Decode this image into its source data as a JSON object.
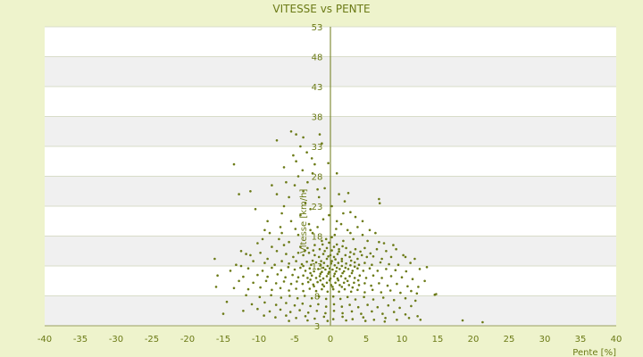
{
  "chart_data": {
    "type": "scatter",
    "title": "VITESSE vs PENTE",
    "xlabel": "Pente [%]",
    "ylabel": "Vitesse [km/h]",
    "xlim": [
      -40,
      40
    ],
    "ylim": [
      3,
      53
    ],
    "x_ticks": [
      "-40",
      "-35",
      "-30",
      "-25",
      "-20",
      "-15",
      "-10",
      "-5",
      "0",
      "5",
      "10",
      "15",
      "20",
      "25",
      "30",
      "35",
      "40"
    ],
    "y_ticks": [
      "3",
      "8",
      "13",
      "18",
      "23",
      "28",
      "33",
      "38",
      "43",
      "48",
      "53"
    ],
    "grid": true,
    "legend": "none",
    "colors": {
      "page_background": "#eef3cc",
      "band_light": "#ffffff",
      "band_dark": "#f0f0f0",
      "axis": "#6b7a16",
      "point": "#6b7a16",
      "text": "#6b7a16"
    },
    "points": [
      [
        -13.5,
        30
      ],
      [
        -12.8,
        25
      ],
      [
        -11.2,
        25.5
      ],
      [
        -7.5,
        34
      ],
      [
        -5.5,
        35.5
      ],
      [
        -4.8,
        35
      ],
      [
        -4.2,
        33
      ],
      [
        -3.8,
        34.5
      ],
      [
        -3.3,
        32
      ],
      [
        -5.2,
        31.5
      ],
      [
        -4.5,
        28
      ],
      [
        -6.2,
        27
      ],
      [
        -2.5,
        28.5
      ],
      [
        -1.5,
        35
      ],
      [
        -1.2,
        33.5
      ],
      [
        -2.2,
        30
      ],
      [
        -0.8,
        26
      ],
      [
        1.2,
        25
      ],
      [
        2.5,
        25.2
      ],
      [
        6.8,
        24.2
      ],
      [
        6.9,
        23.5
      ],
      [
        -6.5,
        23
      ],
      [
        -3.5,
        23.5
      ],
      [
        -2.8,
        22.5
      ],
      [
        0.2,
        23
      ],
      [
        2.8,
        22
      ],
      [
        -4.2,
        21.5
      ],
      [
        3.5,
        21.2
      ],
      [
        -5.5,
        20.5
      ],
      [
        -3,
        20
      ],
      [
        1.5,
        20
      ],
      [
        -1.8,
        19.5
      ],
      [
        0.8,
        19.2
      ],
      [
        -8.5,
        18.5
      ],
      [
        -4.5,
        18.2
      ],
      [
        -2.5,
        18.5
      ],
      [
        2.8,
        18.5
      ],
      [
        4.5,
        18.2
      ],
      [
        -9.5,
        17.5
      ],
      [
        -7.2,
        17.5
      ],
      [
        -5.8,
        17
      ],
      [
        -1.2,
        17.2
      ],
      [
        0.2,
        17.8
      ],
      [
        1.8,
        17.2
      ],
      [
        3.2,
        17.5
      ],
      [
        5.2,
        17.2
      ],
      [
        6.8,
        17
      ],
      [
        8.8,
        16.5
      ],
      [
        -10.2,
        16.8
      ],
      [
        -8.2,
        16.2
      ],
      [
        -6.5,
        16.5
      ],
      [
        -4.2,
        16.2
      ],
      [
        -3.2,
        16
      ],
      [
        -2.2,
        16.5
      ],
      [
        -1.5,
        15.8
      ],
      [
        -0.5,
        16
      ],
      [
        0.5,
        16.2
      ],
      [
        1.2,
        15.8
      ],
      [
        2.2,
        16
      ],
      [
        3.5,
        15.8
      ],
      [
        4.8,
        16
      ],
      [
        6.5,
        15.8
      ],
      [
        7.8,
        15.5
      ],
      [
        9.2,
        15.8
      ],
      [
        -16.2,
        14.2
      ],
      [
        -12.5,
        15.5
      ],
      [
        -11.2,
        14.8
      ],
      [
        -9.8,
        15.2
      ],
      [
        -8.8,
        14.2
      ],
      [
        -7.5,
        15.5
      ],
      [
        -6.2,
        15
      ],
      [
        -5.2,
        14.5
      ],
      [
        -4.5,
        15.2
      ],
      [
        -3.8,
        14.8
      ],
      [
        -3,
        15.2
      ],
      [
        -2.2,
        14.8
      ],
      [
        -1.6,
        14.5
      ],
      [
        -1,
        15
      ],
      [
        -0.5,
        14.2
      ],
      [
        0,
        14.8
      ],
      [
        0.5,
        14.5
      ],
      [
        1,
        15
      ],
      [
        1.6,
        14.2
      ],
      [
        2.1,
        14.8
      ],
      [
        2.7,
        14.5
      ],
      [
        3.3,
        15
      ],
      [
        3.8,
        14.2
      ],
      [
        4.4,
        14.8
      ],
      [
        5.1,
        14.5
      ],
      [
        6,
        14.6
      ],
      [
        7.2,
        14.2
      ],
      [
        8.5,
        14.5
      ],
      [
        10.2,
        14.8
      ],
      [
        -10.8,
        13.8
      ],
      [
        -9.2,
        13.5
      ],
      [
        -7.8,
        13.2
      ],
      [
        -6.8,
        13.8
      ],
      [
        -5.8,
        13.4
      ],
      [
        -4.8,
        13.8
      ],
      [
        -4,
        13.3
      ],
      [
        -3.3,
        13.7
      ],
      [
        -2.7,
        13.2
      ],
      [
        -2,
        13.6
      ],
      [
        -1.4,
        13.1
      ],
      [
        -0.9,
        13.5
      ],
      [
        -0.4,
        13
      ],
      [
        0.1,
        13.4
      ],
      [
        0.6,
        13.1
      ],
      [
        1.1,
        13.5
      ],
      [
        1.6,
        13
      ],
      [
        2.2,
        13.4
      ],
      [
        2.8,
        13.1
      ],
      [
        3.4,
        13.6
      ],
      [
        4,
        13.2
      ],
      [
        4.8,
        13.5
      ],
      [
        5.8,
        13.2
      ],
      [
        7,
        13.6
      ],
      [
        8.2,
        13.3
      ],
      [
        9.5,
        13.2
      ],
      [
        11.2,
        13.5
      ],
      [
        -13.2,
        13.2
      ],
      [
        -14,
        12.2
      ],
      [
        -11.5,
        12.6
      ],
      [
        -9.5,
        12.2
      ],
      [
        -8.2,
        12.7
      ],
      [
        -6.9,
        12.3
      ],
      [
        -5.9,
        12.8
      ],
      [
        -5,
        12.4
      ],
      [
        -4.2,
        12.7
      ],
      [
        -3.5,
        12.2
      ],
      [
        -2.9,
        12.6
      ],
      [
        -2.3,
        12.1
      ],
      [
        -1.7,
        12.5
      ],
      [
        -1.2,
        12
      ],
      [
        -0.7,
        12.4
      ],
      [
        -0.2,
        12
      ],
      [
        0.3,
        12.4
      ],
      [
        0.8,
        12.1
      ],
      [
        1.3,
        12.5
      ],
      [
        1.9,
        12.1
      ],
      [
        2.5,
        12.5
      ],
      [
        3.1,
        12.2
      ],
      [
        3.8,
        12.6
      ],
      [
        4.6,
        12.2
      ],
      [
        5.5,
        12.6
      ],
      [
        6.6,
        12.2
      ],
      [
        7.8,
        12.5
      ],
      [
        9.1,
        12.3
      ],
      [
        10.6,
        12.1
      ],
      [
        12.5,
        12.5
      ],
      [
        -15.8,
        11.4
      ],
      [
        -12.2,
        11.2
      ],
      [
        -10.2,
        11.5
      ],
      [
        -8.8,
        11.2
      ],
      [
        -7.4,
        11.6
      ],
      [
        -6.3,
        11.1
      ],
      [
        -5.3,
        11.5
      ],
      [
        -4.5,
        11.1
      ],
      [
        -3.8,
        11.4
      ],
      [
        -3.2,
        11
      ],
      [
        -2.6,
        11.4
      ],
      [
        -2,
        11
      ],
      [
        -1.5,
        11.3
      ],
      [
        -1,
        10.9
      ],
      [
        -0.5,
        11.3
      ],
      [
        0,
        10.9
      ],
      [
        0.5,
        11.3
      ],
      [
        1,
        10.9
      ],
      [
        1.5,
        11.3
      ],
      [
        2.1,
        10.9
      ],
      [
        2.7,
        11.3
      ],
      [
        3.4,
        11
      ],
      [
        4.1,
        11.4
      ],
      [
        5,
        11
      ],
      [
        6,
        11.4
      ],
      [
        7.2,
        11
      ],
      [
        8.5,
        11.3
      ],
      [
        10,
        11.1
      ],
      [
        11.5,
        10.8
      ],
      [
        13.2,
        10.5
      ],
      [
        14.8,
        8.3
      ],
      [
        -12.8,
        10.5
      ],
      [
        -10.8,
        10.2
      ],
      [
        -9,
        10.5
      ],
      [
        -7.6,
        10.1
      ],
      [
        -6.5,
        10.4
      ],
      [
        -5.5,
        10
      ],
      [
        -4.7,
        10.4
      ],
      [
        -3.9,
        10
      ],
      [
        -3.1,
        10.3
      ],
      [
        -2.4,
        9.9
      ],
      [
        -1.8,
        10.3
      ],
      [
        -1.1,
        9.9
      ],
      [
        -0.5,
        10.2
      ],
      [
        0.1,
        9.8
      ],
      [
        0.7,
        10.2
      ],
      [
        1.3,
        9.8
      ],
      [
        1.9,
        10.2
      ],
      [
        2.6,
        9.8
      ],
      [
        3.3,
        10.2
      ],
      [
        4,
        9.8
      ],
      [
        4.8,
        10.1
      ],
      [
        5.7,
        9.7
      ],
      [
        6.8,
        10.1
      ],
      [
        8,
        9.7
      ],
      [
        9.3,
        10
      ],
      [
        10.8,
        9.6
      ],
      [
        12.3,
        9.5
      ],
      [
        -16,
        9.5
      ],
      [
        -13.5,
        9.3
      ],
      [
        -11.5,
        9.1
      ],
      [
        -9.8,
        9.4
      ],
      [
        -8.2,
        9
      ],
      [
        -7,
        9.3
      ],
      [
        -5.8,
        8.9
      ],
      [
        -4.8,
        9.2
      ],
      [
        -3.8,
        8.8
      ],
      [
        -2.9,
        9.2
      ],
      [
        -2,
        8.8
      ],
      [
        -1.2,
        9.1
      ],
      [
        -0.4,
        8.7
      ],
      [
        0.4,
        9.1
      ],
      [
        1.2,
        8.7
      ],
      [
        2,
        9.1
      ],
      [
        2.9,
        8.7
      ],
      [
        3.8,
        9
      ],
      [
        4.8,
        8.6
      ],
      [
        5.9,
        9
      ],
      [
        7.1,
        8.6
      ],
      [
        8.4,
        8.9
      ],
      [
        9.8,
        8.5
      ],
      [
        11.3,
        8.8
      ],
      [
        12.1,
        8.4
      ],
      [
        14.6,
        8.2
      ],
      [
        -11.8,
        8.1
      ],
      [
        -9.9,
        7.8
      ],
      [
        -8.3,
        8.1
      ],
      [
        -6.9,
        7.7
      ],
      [
        -5.7,
        8
      ],
      [
        -4.6,
        7.6
      ],
      [
        -3.6,
        8
      ],
      [
        -2.6,
        7.6
      ],
      [
        -1.6,
        7.9
      ],
      [
        -0.6,
        7.5
      ],
      [
        0.4,
        7.9
      ],
      [
        1.4,
        7.5
      ],
      [
        2.4,
        7.8
      ],
      [
        3.5,
        7.4
      ],
      [
        4.7,
        7.8
      ],
      [
        6,
        7.4
      ],
      [
        7.4,
        7.7
      ],
      [
        8.9,
        7.3
      ],
      [
        10.5,
        7.6
      ],
      [
        11.9,
        7.2
      ],
      [
        -14.5,
        7
      ],
      [
        -11,
        6.6
      ],
      [
        -9.2,
        6.9
      ],
      [
        -7.6,
        6.5
      ],
      [
        -6.2,
        6.8
      ],
      [
        -5,
        6.4
      ],
      [
        -3.9,
        6.7
      ],
      [
        -2.8,
        6.3
      ],
      [
        -1.7,
        6.6
      ],
      [
        -0.6,
        6.2
      ],
      [
        0.5,
        6.6
      ],
      [
        1.6,
        6.2
      ],
      [
        2.7,
        6.5
      ],
      [
        3.9,
        6.1
      ],
      [
        5.2,
        6.5
      ],
      [
        6.6,
        6.1
      ],
      [
        8.1,
        6.4
      ],
      [
        9.7,
        6
      ],
      [
        11.3,
        6.3
      ],
      [
        -12.2,
        5.5
      ],
      [
        -10.2,
        5.8
      ],
      [
        -8.5,
        5.4
      ],
      [
        -7,
        5.7
      ],
      [
        -5.6,
        5.3
      ],
      [
        -4.3,
        5.6
      ],
      [
        -3.1,
        5.2
      ],
      [
        -1.9,
        5.5
      ],
      [
        -0.7,
        5.1
      ],
      [
        0.5,
        5.5
      ],
      [
        1.7,
        5.1
      ],
      [
        3,
        5.4
      ],
      [
        4.3,
        5
      ],
      [
        5.8,
        5.4
      ],
      [
        7.3,
        5
      ],
      [
        8.9,
        5.3
      ],
      [
        10.5,
        4.9
      ],
      [
        12.2,
        4.6
      ],
      [
        -15,
        5
      ],
      [
        -9.3,
        4.7
      ],
      [
        -7.7,
        4.4
      ],
      [
        -6.2,
        4.7
      ],
      [
        -4.8,
        4.3
      ],
      [
        -3.5,
        4.6
      ],
      [
        -2.2,
        4.2
      ],
      [
        -0.9,
        4.5
      ],
      [
        0.4,
        4.1
      ],
      [
        1.7,
        4.5
      ],
      [
        3.1,
        4.1
      ],
      [
        4.6,
        4.4
      ],
      [
        6.1,
        4
      ],
      [
        7.7,
        4.3
      ],
      [
        9.3,
        4
      ],
      [
        11,
        4.3
      ],
      [
        12.6,
        4
      ],
      [
        -5.8,
        3.8
      ],
      [
        -3.2,
        3.9
      ],
      [
        -0.4,
        3.8
      ],
      [
        2.2,
        3.9
      ],
      [
        4.9,
        3.8
      ],
      [
        7.6,
        3.7
      ],
      [
        18.5,
        3.9
      ],
      [
        21.3,
        3.6
      ],
      [
        -10.5,
        22.5
      ],
      [
        -8.8,
        20.5
      ],
      [
        -7,
        19.5
      ],
      [
        -0.2,
        21.5
      ],
      [
        1.8,
        21.8
      ],
      [
        4.5,
        20.5
      ],
      [
        5.5,
        19
      ],
      [
        -6.8,
        21.8
      ],
      [
        -3.8,
        25.5
      ],
      [
        -1.6,
        24.5
      ],
      [
        2,
        23.8
      ],
      [
        0.6,
        18.2
      ],
      [
        -0.6,
        17.5
      ],
      [
        -9.2,
        19
      ],
      [
        -11.8,
        15
      ],
      [
        3.8,
        19.5
      ],
      [
        6.3,
        18.5
      ],
      [
        7.5,
        16.8
      ],
      [
        -12.5,
        13
      ],
      [
        10.5,
        14.5
      ],
      [
        11.8,
        14.2
      ],
      [
        13.5,
        12.8
      ],
      [
        -6.5,
        29.5
      ],
      [
        -4.8,
        30.5
      ],
      [
        -3.2,
        27
      ],
      [
        -1.8,
        25.8
      ],
      [
        -5.8,
        24.5
      ],
      [
        -8.2,
        26.5
      ],
      [
        0.9,
        28.5
      ],
      [
        -0.3,
        30.2
      ],
      [
        -2.6,
        31
      ],
      [
        -3.9,
        29
      ],
      [
        -5,
        26.5
      ],
      [
        -7.5,
        25
      ],
      [
        -1,
        20.8
      ],
      [
        0.9,
        20.5
      ],
      [
        2.4,
        19
      ],
      [
        -2.8,
        19
      ],
      [
        -4.9,
        19.2
      ],
      [
        -6.8,
        18.5
      ],
      [
        -0.2,
        16.9
      ],
      [
        0.9,
        16.6
      ],
      [
        -1.1,
        16.6
      ],
      [
        1.7,
        16.3
      ],
      [
        -0.8,
        15.5
      ],
      [
        0.2,
        15.6
      ],
      [
        1.2,
        15.4
      ],
      [
        2.8,
        15.3
      ],
      [
        -2.4,
        15.6
      ],
      [
        -3.6,
        15.5
      ],
      [
        4.2,
        15.4
      ],
      [
        5.6,
        15.1
      ],
      [
        -0.3,
        14.6
      ],
      [
        0.7,
        14.1
      ],
      [
        -1.3,
        13.8
      ],
      [
        0.2,
        13.8
      ],
      [
        1.6,
        13.8
      ],
      [
        2.9,
        13.9
      ],
      [
        -2.5,
        13.9
      ],
      [
        -0.1,
        12.6
      ],
      [
        0.9,
        12.7
      ],
      [
        -1,
        12.7
      ],
      [
        2.1,
        12.7
      ],
      [
        3.4,
        12.9
      ],
      [
        -3.8,
        13
      ],
      [
        -0.3,
        11.7
      ],
      [
        0.6,
        11.7
      ],
      [
        1.7,
        11.8
      ],
      [
        -1.4,
        11.7
      ],
      [
        -2.8,
        11.8
      ],
      [
        3,
        11.8
      ],
      [
        -0.1,
        10.6
      ],
      [
        1.1,
        10.6
      ],
      [
        -1.4,
        10.6
      ],
      [
        2.4,
        10.5
      ],
      [
        -2.8,
        10.7
      ],
      [
        3.9,
        10.6
      ],
      [
        0.3,
        9.5
      ],
      [
        -0.9,
        9.6
      ],
      [
        1.6,
        9.5
      ],
      [
        -2.3,
        9.6
      ],
      [
        3.1,
        9.4
      ]
    ]
  }
}
